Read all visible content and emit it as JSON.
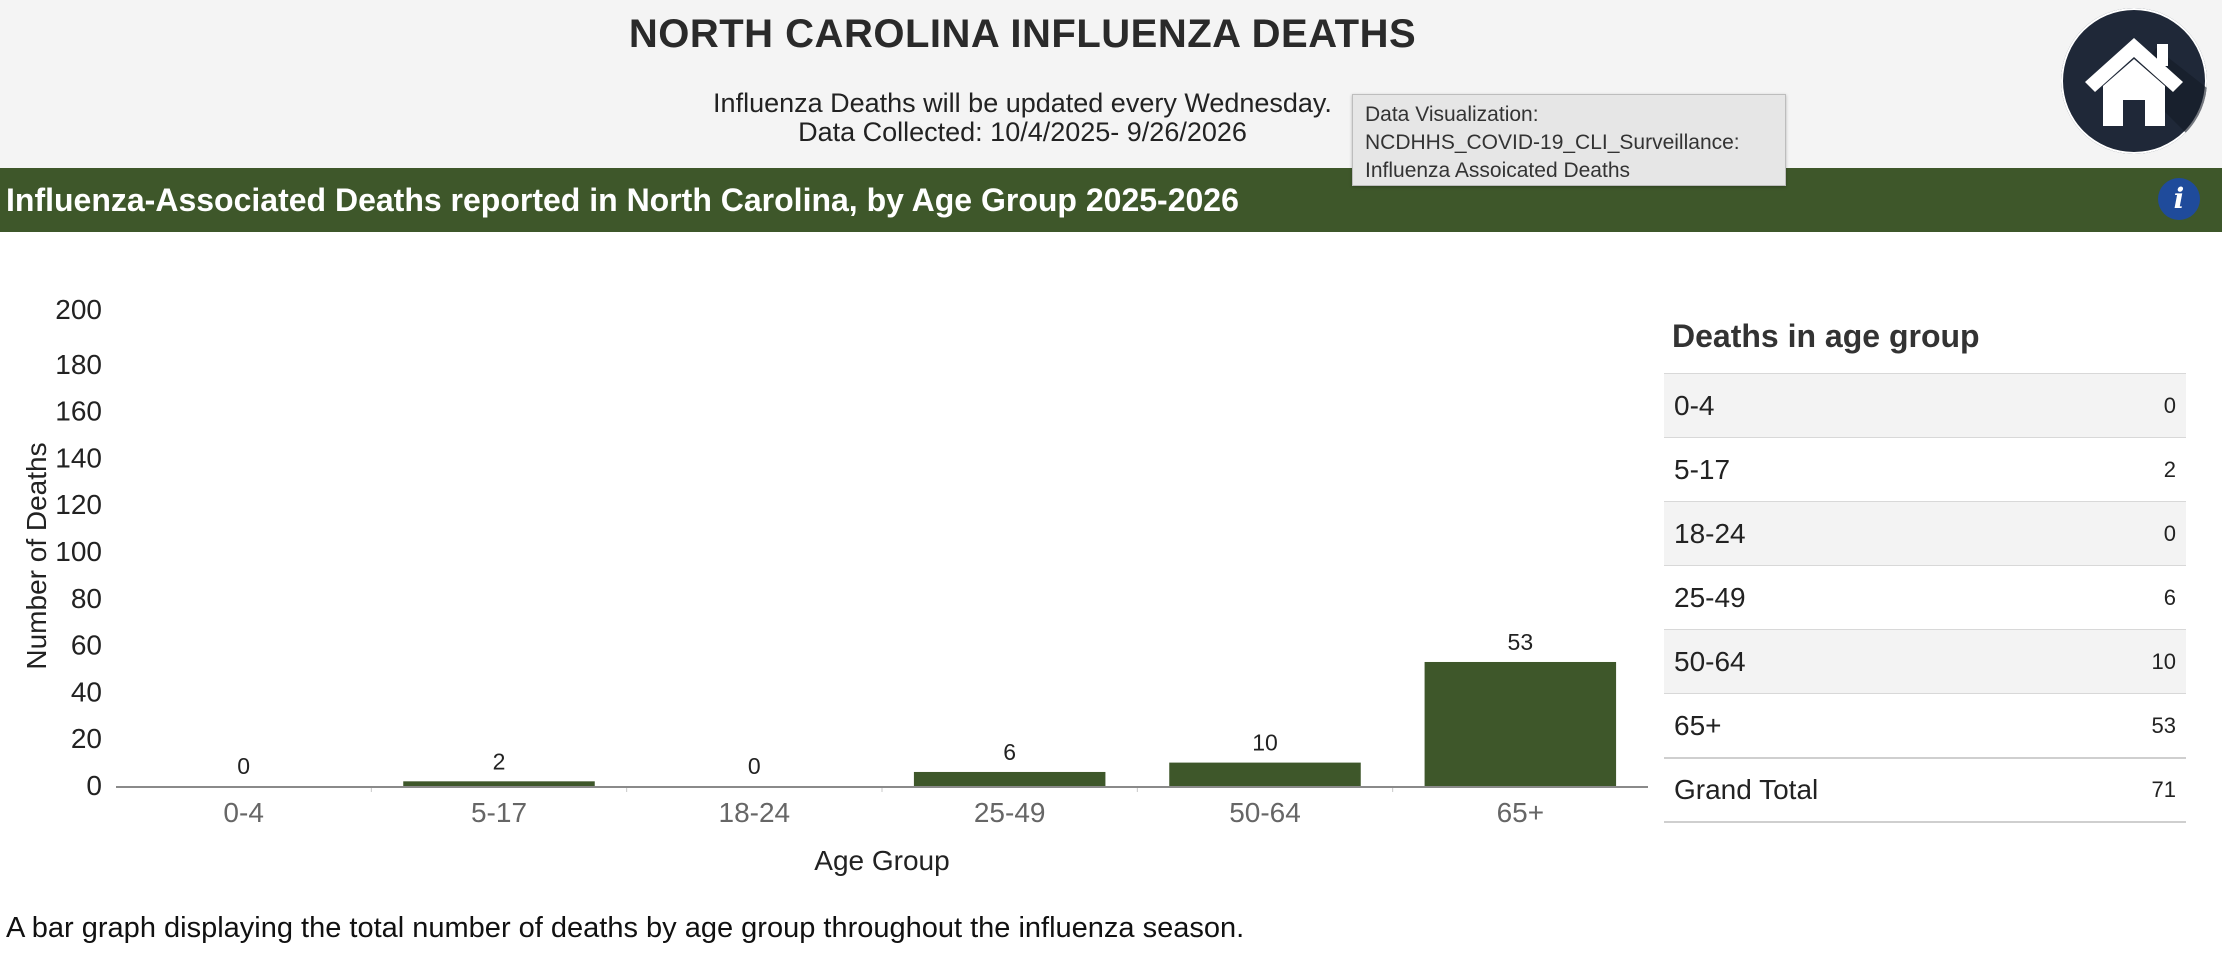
{
  "header": {
    "title": "NORTH CAROLINA INFLUENZA DEATHS",
    "update_note": "Influenza Deaths will be updated every Wednesday.",
    "collected": "Data Collected:  10/4/2025- 9/26/2026"
  },
  "tooltip": {
    "line1": "Data Visualization:",
    "line2": "NCDHHS_COVID-19_CLI_Surveillance:",
    "line3": "Influenza Assoicated Deaths"
  },
  "banner": {
    "title": "Influenza-Associated Deaths reported in North Carolina, by Age Group 2025-2026",
    "info_glyph": "i"
  },
  "chart_data": {
    "type": "bar",
    "categories": [
      "0-4",
      "5-17",
      "18-24",
      "25-49",
      "50-64",
      "65+"
    ],
    "values": [
      0,
      2,
      0,
      6,
      10,
      53
    ],
    "data_labels": [
      "0",
      "2",
      "0",
      "6",
      "10",
      "53"
    ],
    "xlabel": "Age Group",
    "ylabel": "Number of Deaths",
    "ylim": [
      0,
      200
    ],
    "yticks": [
      0,
      20,
      40,
      60,
      80,
      100,
      120,
      140,
      160,
      180,
      200
    ],
    "grid": false,
    "bar_color": "#3e572a"
  },
  "table": {
    "title": "Deaths in age group",
    "rows": [
      {
        "label": "0-4",
        "value": "0"
      },
      {
        "label": "5-17",
        "value": "2"
      },
      {
        "label": "18-24",
        "value": "0"
      },
      {
        "label": "25-49",
        "value": "6"
      },
      {
        "label": "50-64",
        "value": "10"
      },
      {
        "label": "65+",
        "value": "53"
      }
    ],
    "total_label": "Grand Total",
    "total_value": "71"
  },
  "caption": "A bar graph displaying the total number of deaths by age group throughout the influenza season."
}
